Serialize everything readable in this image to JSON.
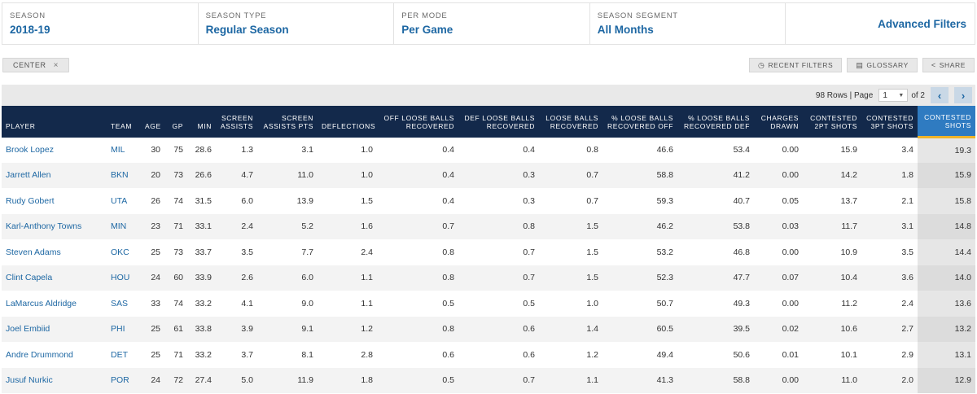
{
  "filters": [
    {
      "label": "SEASON",
      "value": "2018-19"
    },
    {
      "label": "SEASON TYPE",
      "value": "Regular Season"
    },
    {
      "label": "PER MODE",
      "value": "Per Game"
    },
    {
      "label": "SEASON SEGMENT",
      "value": "All Months"
    }
  ],
  "advanced_filters_label": "Advanced Filters",
  "chip": {
    "label": "CENTER",
    "close": "×"
  },
  "actions": [
    {
      "icon": "clock-icon",
      "glyph": "◷",
      "label": "RECENT FILTERS"
    },
    {
      "icon": "book-icon",
      "glyph": "▤",
      "label": "GLOSSARY"
    },
    {
      "icon": "share-icon",
      "glyph": "<",
      "label": "SHARE"
    }
  ],
  "pager": {
    "rows_text": "98 Rows | Page",
    "page": "1",
    "of_text": "of 2",
    "prev": "‹",
    "next": "›"
  },
  "colors": {
    "header": "#13294b",
    "sorted_header": "#2f7bc1",
    "link": "#1d67a3",
    "sort_marker": "#f0b429"
  },
  "table": {
    "columns": [
      "PLAYER",
      "TEAM",
      "AGE",
      "GP",
      "MIN",
      "SCREEN ASSISTS",
      "SCREEN ASSISTS PTS",
      "DEFLECTIONS",
      "OFF LOOSE BALLS RECOVERED",
      "DEF LOOSE BALLS RECOVERED",
      "LOOSE BALLS RECOVERED",
      "% LOOSE BALLS RECOVERED OFF",
      "% LOOSE BALLS RECOVERED DEF",
      "CHARGES DRAWN",
      "CONTESTED 2PT SHOTS",
      "CONTESTED 3PT SHOTS",
      "CONTESTED SHOTS"
    ],
    "rows": [
      [
        "Brook Lopez",
        "MIL",
        "30",
        "75",
        "28.6",
        "1.3",
        "3.1",
        "1.0",
        "0.4",
        "0.4",
        "0.8",
        "46.6",
        "53.4",
        "0.00",
        "15.9",
        "3.4",
        "19.3"
      ],
      [
        "Jarrett Allen",
        "BKN",
        "20",
        "73",
        "26.6",
        "4.7",
        "11.0",
        "1.0",
        "0.4",
        "0.3",
        "0.7",
        "58.8",
        "41.2",
        "0.00",
        "14.2",
        "1.8",
        "15.9"
      ],
      [
        "Rudy Gobert",
        "UTA",
        "26",
        "74",
        "31.5",
        "6.0",
        "13.9",
        "1.5",
        "0.4",
        "0.3",
        "0.7",
        "59.3",
        "40.7",
        "0.05",
        "13.7",
        "2.1",
        "15.8"
      ],
      [
        "Karl-Anthony Towns",
        "MIN",
        "23",
        "71",
        "33.1",
        "2.4",
        "5.2",
        "1.6",
        "0.7",
        "0.8",
        "1.5",
        "46.2",
        "53.8",
        "0.03",
        "11.7",
        "3.1",
        "14.8"
      ],
      [
        "Steven Adams",
        "OKC",
        "25",
        "73",
        "33.7",
        "3.5",
        "7.7",
        "2.4",
        "0.8",
        "0.7",
        "1.5",
        "53.2",
        "46.8",
        "0.00",
        "10.9",
        "3.5",
        "14.4"
      ],
      [
        "Clint Capela",
        "HOU",
        "24",
        "60",
        "33.9",
        "2.6",
        "6.0",
        "1.1",
        "0.8",
        "0.7",
        "1.5",
        "52.3",
        "47.7",
        "0.07",
        "10.4",
        "3.6",
        "14.0"
      ],
      [
        "LaMarcus Aldridge",
        "SAS",
        "33",
        "74",
        "33.2",
        "4.1",
        "9.0",
        "1.1",
        "0.5",
        "0.5",
        "1.0",
        "50.7",
        "49.3",
        "0.00",
        "11.2",
        "2.4",
        "13.6"
      ],
      [
        "Joel Embiid",
        "PHI",
        "25",
        "61",
        "33.8",
        "3.9",
        "9.1",
        "1.2",
        "0.8",
        "0.6",
        "1.4",
        "60.5",
        "39.5",
        "0.02",
        "10.6",
        "2.7",
        "13.2"
      ],
      [
        "Andre Drummond",
        "DET",
        "25",
        "71",
        "33.2",
        "3.7",
        "8.1",
        "2.8",
        "0.6",
        "0.6",
        "1.2",
        "49.4",
        "50.6",
        "0.01",
        "10.1",
        "2.9",
        "13.1"
      ],
      [
        "Jusuf Nurkic",
        "POR",
        "24",
        "72",
        "27.4",
        "5.0",
        "11.9",
        "1.8",
        "0.5",
        "0.7",
        "1.1",
        "41.3",
        "58.8",
        "0.00",
        "11.0",
        "2.0",
        "12.9"
      ]
    ]
  }
}
